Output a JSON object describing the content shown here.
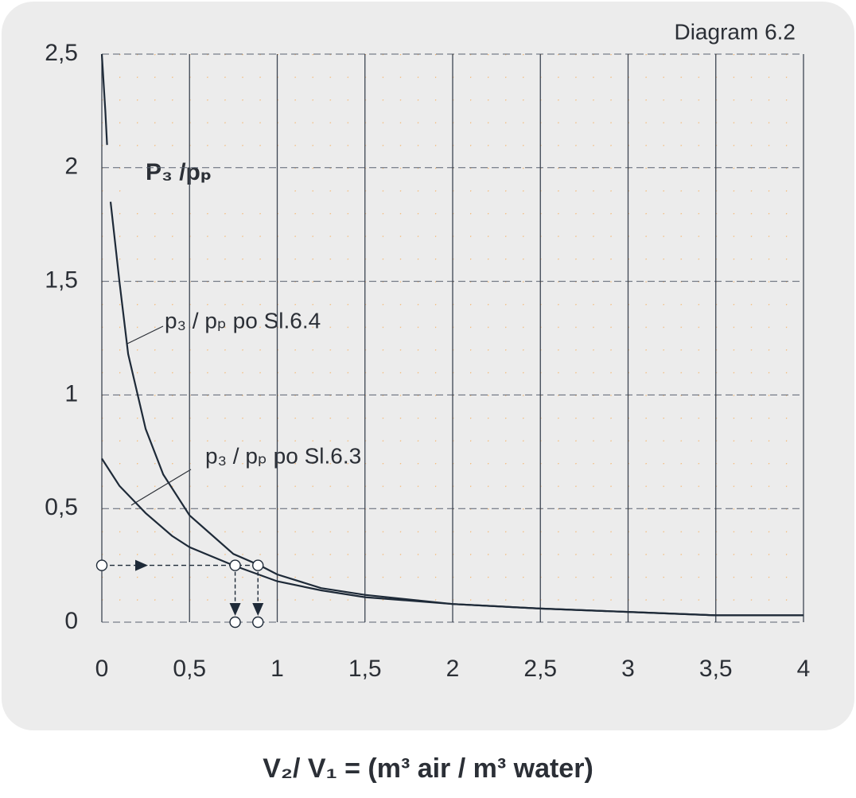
{
  "chart_data": {
    "type": "line",
    "title": "P₃ /pₚ",
    "subtitle": "Diagram 6.2",
    "x_label": "V₂/ V₁ =  (m³ air / m³ water)",
    "xlim": [
      0,
      4
    ],
    "ylim": [
      0,
      2.5
    ],
    "xticks": [
      0,
      {
        "value": 0.5,
        "label": "0,5"
      },
      1,
      {
        "value": 1.5,
        "label": "1,5"
      },
      2,
      {
        "value": 2.5,
        "label": "2,5"
      },
      3,
      {
        "value": 3.5,
        "label": "3,5"
      },
      4
    ],
    "yticks": [
      0,
      {
        "value": 0.5,
        "label": "0,5"
      },
      1,
      {
        "value": 1.5,
        "label": "1,5"
      },
      2,
      {
        "value": 2.5,
        "label": "2,5"
      }
    ],
    "grid": true,
    "series": [
      {
        "name": "p₃ / pₚ  po Sl.6.4",
        "color": "#1e2a38",
        "x": [
          0,
          0.02,
          0.03,
          0.04,
          0.05,
          0.1,
          0.15,
          0.25,
          0.35,
          0.5,
          0.75,
          0.9,
          1,
          1.25,
          1.5,
          2,
          2.5,
          3,
          3.5,
          4
        ],
        "values": [
          2.5,
          2.25,
          2.1,
          null,
          1.85,
          1.5,
          1.18,
          0.85,
          0.65,
          0.47,
          0.3,
          0.25,
          0.21,
          0.15,
          0.12,
          0.08,
          0.06,
          0.045,
          0.03,
          0.03
        ]
      },
      {
        "name": "p₃ / pₚ  po Sl.6.3",
        "color": "#1e2a38",
        "x": [
          0,
          0.1,
          0.25,
          0.4,
          0.5,
          0.75,
          1,
          1.25,
          1.5,
          2,
          2.5,
          3,
          3.5,
          4
        ],
        "values": [
          0.72,
          0.6,
          0.48,
          0.38,
          0.33,
          0.25,
          0.18,
          0.14,
          0.11,
          0.08,
          0.06,
          0.045,
          0.03,
          0.03
        ]
      }
    ],
    "guide": {
      "y": 0.25,
      "x": [
        0.76,
        0.89
      ]
    }
  }
}
